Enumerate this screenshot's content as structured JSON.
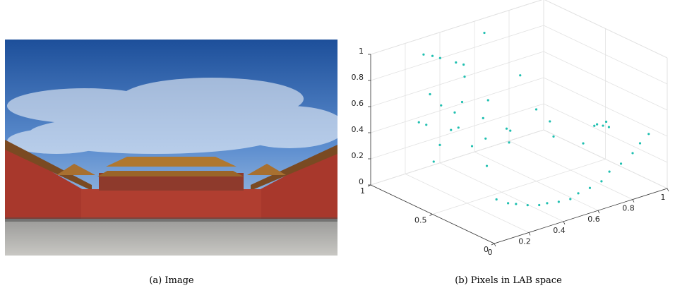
{
  "figure": {
    "captions": [
      "(a) Image",
      "(b) Pixels in LAB space"
    ]
  },
  "chart_data": {
    "type": "scatter3d",
    "color": "#1fbfb0",
    "grid": true,
    "xlim": [
      0,
      1
    ],
    "ylim": [
      0,
      1
    ],
    "zlim": [
      0,
      1
    ],
    "xticks": [
      0,
      0.2,
      0.4,
      0.6,
      0.8,
      1
    ],
    "yticks": [
      0,
      0.5,
      1
    ],
    "zticks": [
      0,
      0.2,
      0.4,
      0.6,
      0.8,
      1
    ],
    "x": [
      0.12,
      0.18,
      0.24,
      0.3,
      0.36,
      0.42,
      0.48,
      0.54,
      0.6,
      0.66,
      0.72,
      0.78,
      0.84,
      0.9,
      0.95,
      1.0,
      0.1,
      0.15,
      0.2,
      0.25,
      0.3,
      0.35,
      0.4,
      0.45,
      0.5,
      0.2,
      0.3,
      0.4,
      0.15,
      0.35,
      0.5,
      0.55,
      0.25,
      0.45,
      0.25,
      0.28,
      0.22,
      0.35,
      0.38,
      0.95,
      0.93,
      0.97,
      0.9,
      0.99,
      0.7,
      0.75,
      0.6,
      0.65,
      0.8,
      0.55,
      0.15
    ],
    "y": [
      0.15,
      0.14,
      0.16,
      0.15,
      0.14,
      0.16,
      0.15,
      0.14,
      0.16,
      0.15,
      0.14,
      0.16,
      0.15,
      0.14,
      0.15,
      0.15,
      0.75,
      0.65,
      0.8,
      0.7,
      0.6,
      0.75,
      0.65,
      0.7,
      0.6,
      0.6,
      0.85,
      0.8,
      0.7,
      0.55,
      0.75,
      0.65,
      0.9,
      0.5,
      0.85,
      0.83,
      0.88,
      0.8,
      0.78,
      0.45,
      0.47,
      0.43,
      0.45,
      0.48,
      0.5,
      0.6,
      0.5,
      0.7,
      0.4,
      0.85,
      0.5
    ],
    "z": [
      0.22,
      0.17,
      0.13,
      0.1,
      0.08,
      0.06,
      0.05,
      0.05,
      0.06,
      0.08,
      0.11,
      0.15,
      0.19,
      0.25,
      0.3,
      0.35,
      0.55,
      0.4,
      0.7,
      0.45,
      0.35,
      0.6,
      0.5,
      0.3,
      0.4,
      0.65,
      0.55,
      0.75,
      0.25,
      0.2,
      0.55,
      0.25,
      0.4,
      0.45,
      0.95,
      0.93,
      0.96,
      0.88,
      0.86,
      0.3,
      0.31,
      0.29,
      0.32,
      0.3,
      0.3,
      0.35,
      0.55,
      0.7,
      0.25,
      1.0,
      0.6
    ]
  }
}
